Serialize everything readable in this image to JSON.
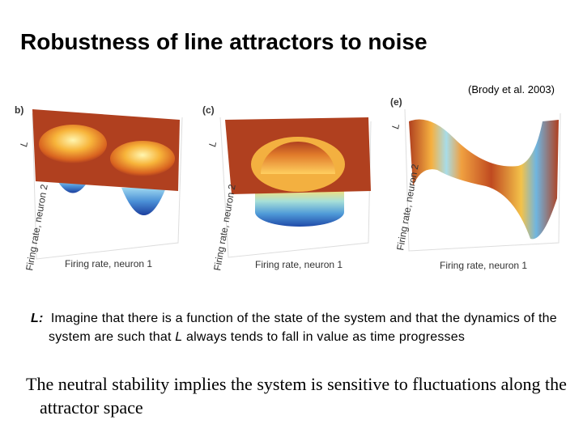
{
  "title": "Robustness of line attractors to noise",
  "citation": "(Brody et al. 2003)",
  "panels": [
    {
      "label": "b)",
      "z_axis": "L",
      "y_axis": "Firing rate, neuron 2",
      "x_axis": "Firing rate, neuron 1"
    },
    {
      "label": "(c)",
      "z_axis": "L",
      "y_axis": "Firing rate, neuron 2",
      "x_axis": "Firing rate, neuron 1"
    },
    {
      "label": "(e)",
      "z_axis": "L",
      "y_axis": "Firing rate, neuron 2",
      "x_axis": "Firing rate, neuron 1"
    }
  ],
  "paragraph1": {
    "lead": "L:",
    "text_before": "Imagine that there is a function of the state of the system and that the dynamics of the system are such that",
    "italic": "L",
    "text_after": "always tends to fall in value as time progresses"
  },
  "paragraph2": "The neutral stability implies the system is sensitive to fluctuations along the attractor space"
}
